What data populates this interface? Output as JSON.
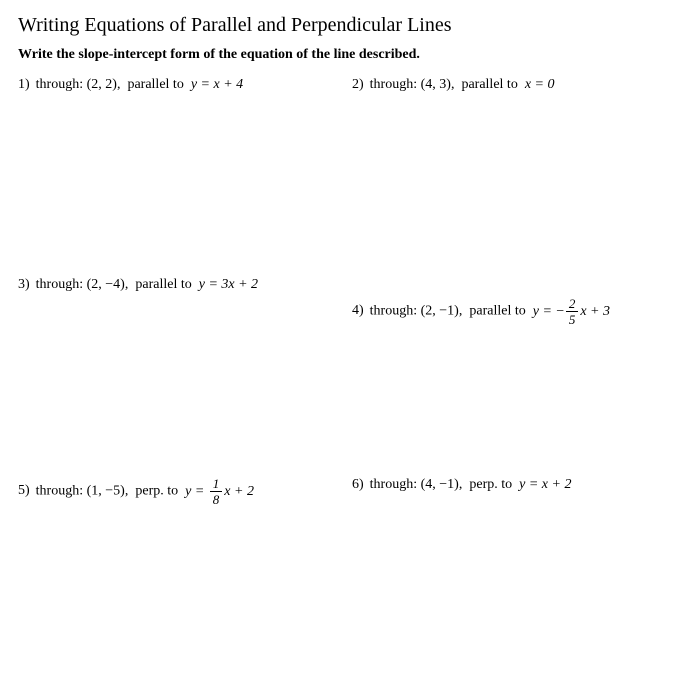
{
  "title": "Writing Equations of Parallel and Perpendicular Lines",
  "subtitle": "Write the slope-intercept form of the equation of the line described.",
  "problems": {
    "p1": {
      "num": "1)",
      "through_label": "through:",
      "point": "(2, 2),",
      "rel": "parallel to",
      "eq_prefix": "y = x + 4"
    },
    "p2": {
      "num": "2)",
      "through_label": "through:",
      "point": "(4, 3),",
      "rel": "parallel to",
      "eq_prefix": "x = 0"
    },
    "p3": {
      "num": "3)",
      "through_label": "through:",
      "point": "(2, −4),",
      "rel": "parallel to",
      "eq_prefix": "y = 3x + 2"
    },
    "p4": {
      "num": "4)",
      "through_label": "through:",
      "point": "(2, −1),",
      "rel": "parallel to",
      "eq_pre": "y = −",
      "frac_n": "2",
      "frac_d": "5",
      "eq_post": "x + 3"
    },
    "p5": {
      "num": "5)",
      "through_label": "through:",
      "point": "(1, −5),",
      "rel": "perp. to",
      "eq_pre": "y = ",
      "frac_n": "1",
      "frac_d": "8",
      "eq_post": "x + 2"
    },
    "p6": {
      "num": "6)",
      "through_label": "through:",
      "point": "(4, −1),",
      "rel": "perp. to",
      "eq_prefix": "y = x + 2"
    }
  }
}
